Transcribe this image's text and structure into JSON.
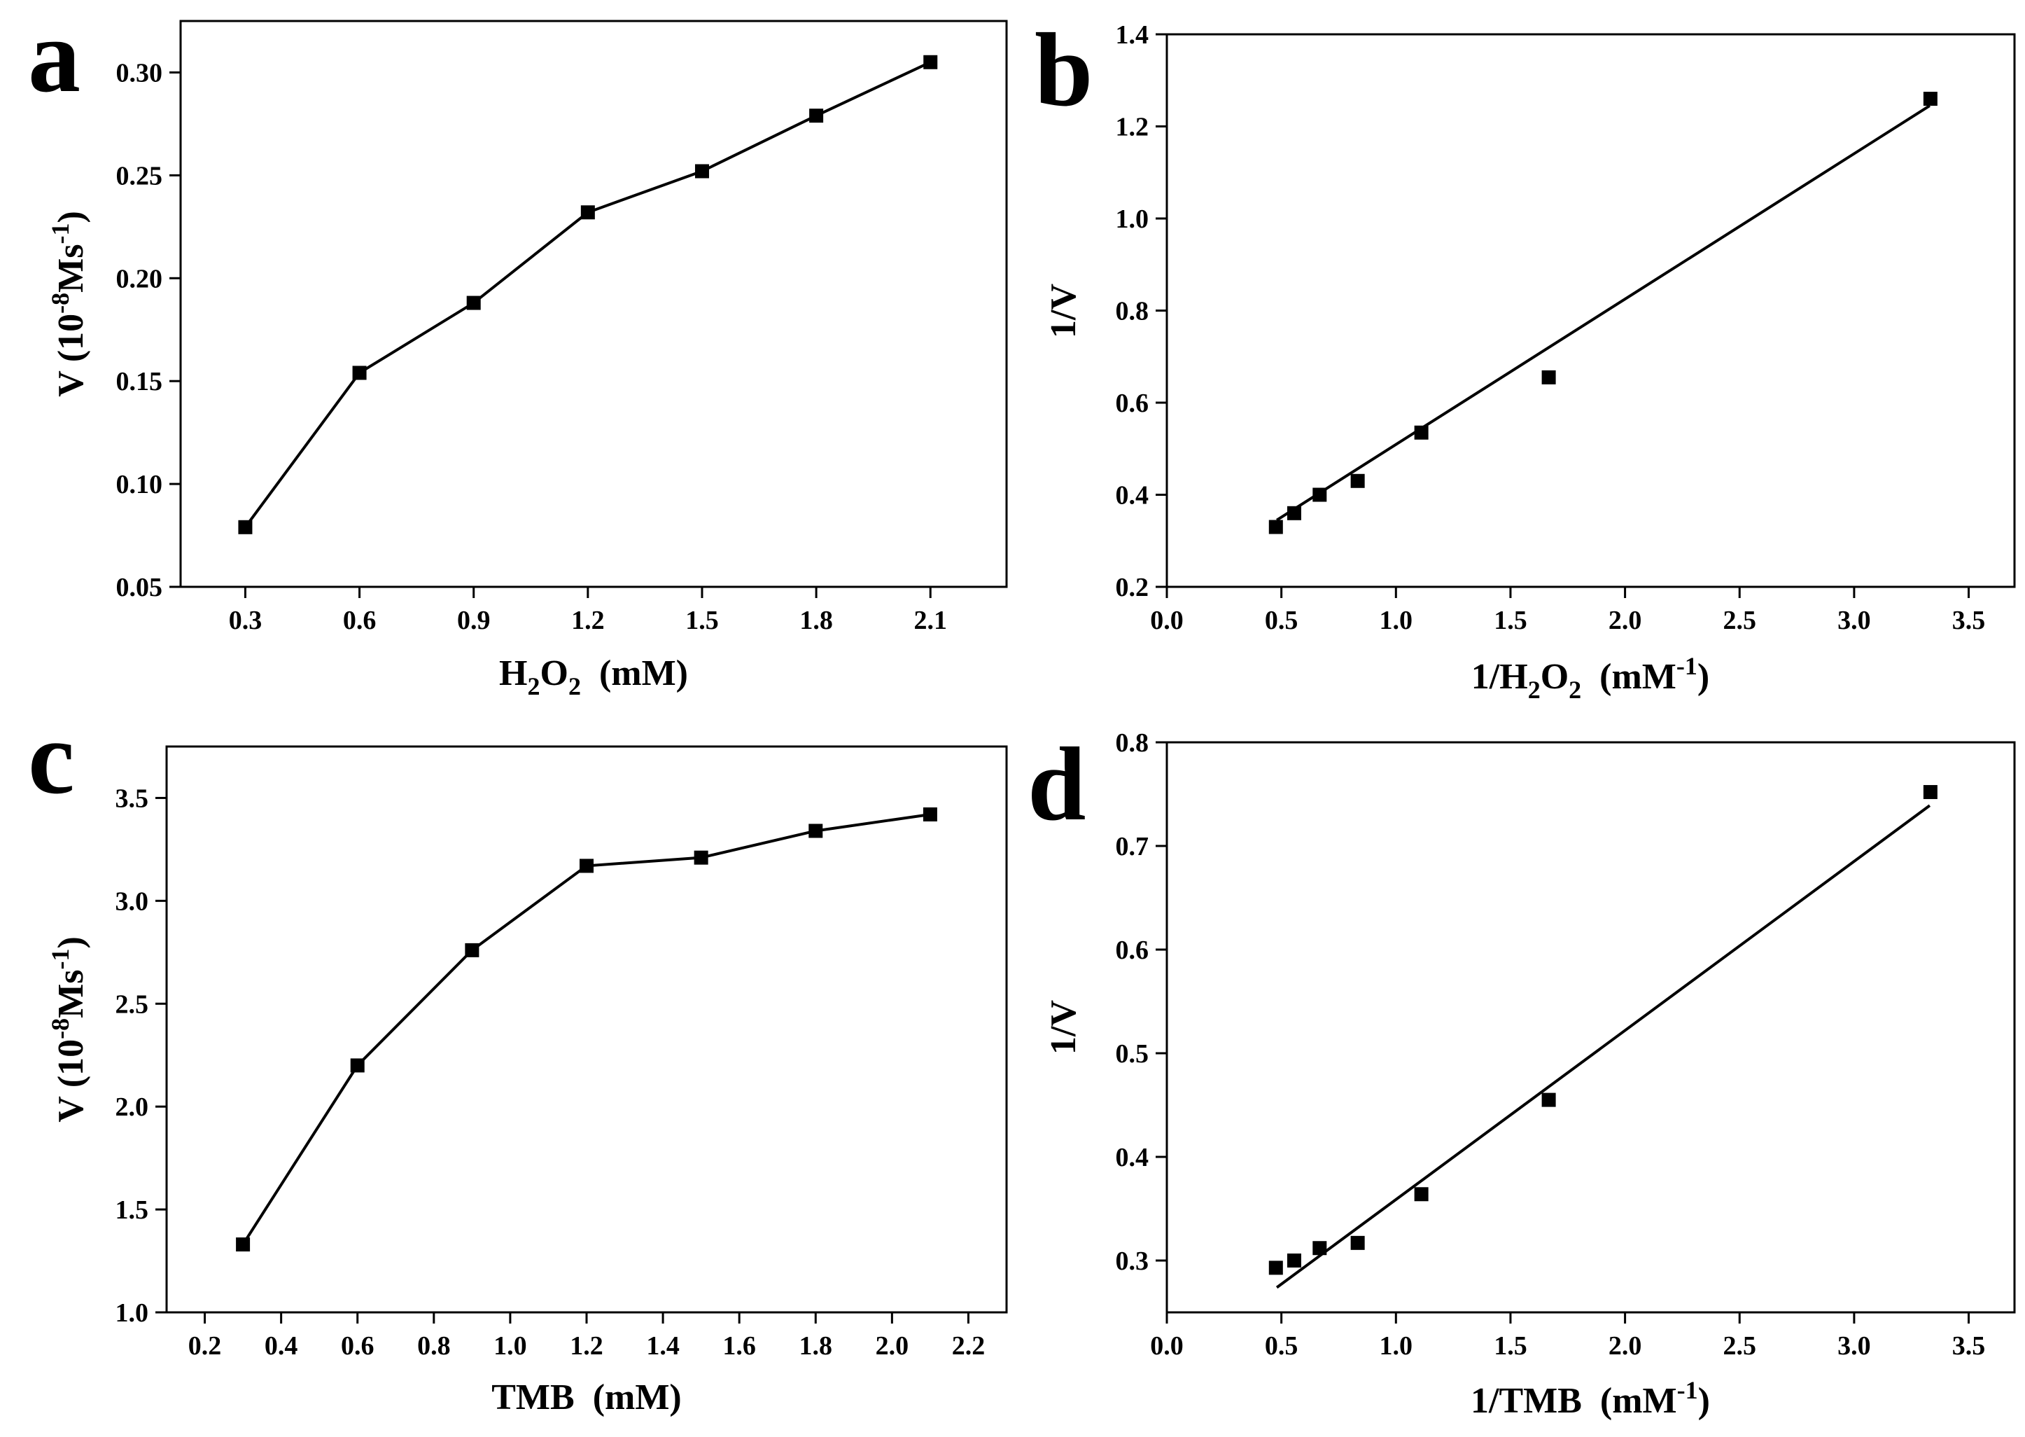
{
  "chart_data": [
    {
      "panel": "a",
      "type": "line",
      "xlabel": "H2O2  (mM)",
      "xlabel_parts": {
        "pre": "H",
        "sub1": "2",
        "mid": "O",
        "sub2": "2",
        "unit": "(mM)"
      },
      "ylabel": "V (10-8Ms-1)",
      "ylabel_parts": {
        "pre": "V (10",
        "sup1": "-8",
        "mid": "Ms",
        "sup2": "-1",
        "post": ")"
      },
      "xlim": [
        0.13,
        2.3
      ],
      "ylim": [
        0.05,
        0.325
      ],
      "xticks": [
        0.3,
        0.6,
        0.9,
        1.2,
        1.5,
        1.8,
        2.1
      ],
      "xticklabels": [
        "0.3",
        "0.6",
        "0.9",
        "1.2",
        "1.5",
        "1.8",
        "2.1"
      ],
      "yticks": [
        0.05,
        0.1,
        0.15,
        0.2,
        0.25,
        0.3
      ],
      "yticklabels": [
        "0.05",
        "0.10",
        "0.15",
        "0.20",
        "0.25",
        "0.30"
      ],
      "series": [
        {
          "name": "H2O2",
          "x": [
            0.3,
            0.6,
            0.9,
            1.2,
            1.5,
            1.8,
            2.1
          ],
          "y": [
            0.079,
            0.154,
            0.188,
            0.232,
            0.252,
            0.279,
            0.305
          ],
          "connect": true
        }
      ]
    },
    {
      "panel": "b",
      "type": "scatter",
      "xlabel": "1/H2O2  (mM-1)",
      "xlabel_parts": {
        "pre": "1/H",
        "sub1": "2",
        "mid": "O",
        "sub2": "2",
        "unit_pre": "(mM",
        "unit_sup": "-1",
        "unit_post": ")"
      },
      "ylabel": "1/V",
      "xlim": [
        0.0,
        3.7
      ],
      "ylim": [
        0.2,
        1.4
      ],
      "xticks": [
        0.0,
        0.5,
        1.0,
        1.5,
        2.0,
        2.5,
        3.0,
        3.5
      ],
      "xticklabels": [
        "0.0",
        "0.5",
        "1.0",
        "1.5",
        "2.0",
        "2.5",
        "3.0",
        "3.5"
      ],
      "yticks": [
        0.2,
        0.4,
        0.6,
        0.8,
        1.0,
        1.2,
        1.4
      ],
      "yticklabels": [
        "0.2",
        "0.4",
        "0.6",
        "0.8",
        "1.0",
        "1.2",
        "1.4"
      ],
      "series": [
        {
          "name": "1/V",
          "x": [
            0.476,
            0.556,
            0.667,
            0.833,
            1.111,
            1.667,
            3.333
          ],
          "y": [
            0.33,
            0.36,
            0.4,
            0.43,
            0.535,
            0.655,
            1.26
          ],
          "connect": false
        }
      ],
      "fit": {
        "x": [
          0.48,
          3.33
        ],
        "y": [
          0.345,
          1.245
        ]
      }
    },
    {
      "panel": "c",
      "type": "line",
      "xlabel": "TMB  (mM)",
      "xlabel_parts": {
        "pre": "TMB",
        "unit": "(mM)"
      },
      "ylabel": "V (10-8Ms-1)",
      "ylabel_parts": {
        "pre": "V (10",
        "sup1": "-8",
        "mid": "Ms",
        "sup2": "-1",
        "post": ")"
      },
      "xlim": [
        0.1,
        2.3
      ],
      "ylim": [
        1.0,
        3.75
      ],
      "xticks": [
        0.2,
        0.4,
        0.6,
        0.8,
        1.0,
        1.2,
        1.4,
        1.6,
        1.8,
        2.0,
        2.2
      ],
      "xticklabels": [
        "0.2",
        "0.4",
        "0.6",
        "0.8",
        "1.0",
        "1.2",
        "1.4",
        "1.6",
        "1.8",
        "2.0",
        "2.2"
      ],
      "yticks": [
        1.0,
        1.5,
        2.0,
        2.5,
        3.0,
        3.5
      ],
      "yticklabels": [
        "1.0",
        "1.5",
        "2.0",
        "2.5",
        "3.0",
        "3.5"
      ],
      "series": [
        {
          "name": "TMB",
          "x": [
            0.3,
            0.6,
            0.9,
            1.2,
            1.5,
            1.8,
            2.1
          ],
          "y": [
            1.33,
            2.2,
            2.76,
            3.17,
            3.21,
            3.34,
            3.42
          ],
          "connect": true
        }
      ]
    },
    {
      "panel": "d",
      "type": "scatter",
      "xlabel": "1/TMB  (mM-1)",
      "xlabel_parts": {
        "pre": "1/TMB",
        "unit_pre": "(mM",
        "unit_sup": "-1",
        "unit_post": ")"
      },
      "ylabel": "1/V",
      "xlim": [
        0.0,
        3.7
      ],
      "ylim": [
        0.25,
        0.8
      ],
      "xticks": [
        0.0,
        0.5,
        1.0,
        1.5,
        2.0,
        2.5,
        3.0,
        3.5
      ],
      "xticklabels": [
        "0.0",
        "0.5",
        "1.0",
        "1.5",
        "2.0",
        "2.5",
        "3.0",
        "3.5"
      ],
      "yticks": [
        0.3,
        0.4,
        0.5,
        0.6,
        0.7,
        0.8
      ],
      "yticklabels": [
        "0.3",
        "0.4",
        "0.5",
        "0.6",
        "0.7",
        "0.8"
      ],
      "series": [
        {
          "name": "1/V",
          "x": [
            0.476,
            0.556,
            0.667,
            0.833,
            1.111,
            1.667,
            3.333
          ],
          "y": [
            0.293,
            0.3,
            0.312,
            0.317,
            0.364,
            0.455,
            0.752
          ],
          "connect": false
        }
      ],
      "fit": {
        "x": [
          0.48,
          3.33
        ],
        "y": [
          0.274,
          0.739
        ]
      }
    }
  ]
}
